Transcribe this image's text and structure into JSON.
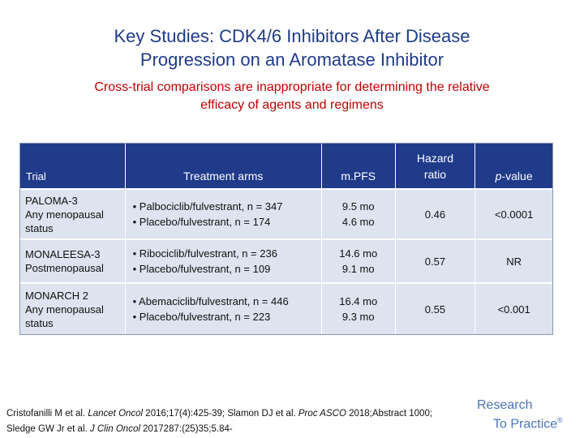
{
  "slide": {
    "title_line1": "Key Studies: CDK4/6 Inhibitors After Disease",
    "title_line2": "Progression on an Aromatase Inhibitor",
    "subtitle_line1": "Cross-trial comparisons are inappropriate for determining the relative",
    "subtitle_line2": "efficacy of agents and regimens"
  },
  "table": {
    "headers": {
      "trial": "Trial",
      "treatment": "Treatment arms",
      "mpfs": "m.PFS",
      "hr_line1": "Hazard",
      "hr_line2": "ratio",
      "p_italic": "p",
      "p_rest": "-value"
    },
    "rows": [
      {
        "trial_line1": "PALOMA-3",
        "trial_line2": "Any menopausal",
        "trial_line3": "status",
        "arm1": "• Palbociclib/fulvestrant, n = 347",
        "arm2": "• Placebo/fulvestrant, n = 174",
        "mpfs1": "9.5 mo",
        "mpfs2": "4.6 mo",
        "hr": "0.46",
        "p": "<0.0001"
      },
      {
        "trial_line1": "MONALEESA-3",
        "trial_line2": "Postmenopausal",
        "trial_line3": "",
        "arm1": "• Ribociclib/fulvestrant, n = 236",
        "arm2": "• Placebo/fulvestrant, n = 109",
        "mpfs1": "14.6 mo",
        "mpfs2": "9.1 mo",
        "hr": "0.57",
        "p": "NR"
      },
      {
        "trial_line1": "MONARCH 2",
        "trial_line2": "Any menopausal",
        "trial_line3": "status",
        "arm1": "• Abemaciclib/fulvestrant, n = 446",
        "arm2": "• Placebo/fulvestrant, n = 223",
        "mpfs1": "16.4 mo",
        "mpfs2": "9.3 mo",
        "hr": "0.55",
        "p": "<0.001"
      }
    ]
  },
  "citation": {
    "a1": "Cristofanilli M et al. ",
    "j1": "Lancet Oncol",
    "a2": " 2016;17(4):425-39; Slamon DJ et al. ",
    "j2": "Proc ASCO",
    "a3": " 2018;Abstract 1000;",
    "b1": "Sledge GW Jr et al. ",
    "j3": "J Clin Oncol",
    "b2": " 2017287:(25)35;5.84-"
  },
  "logo": {
    "line1": "Research",
    "line2": "To Practice",
    "mark": "®"
  }
}
